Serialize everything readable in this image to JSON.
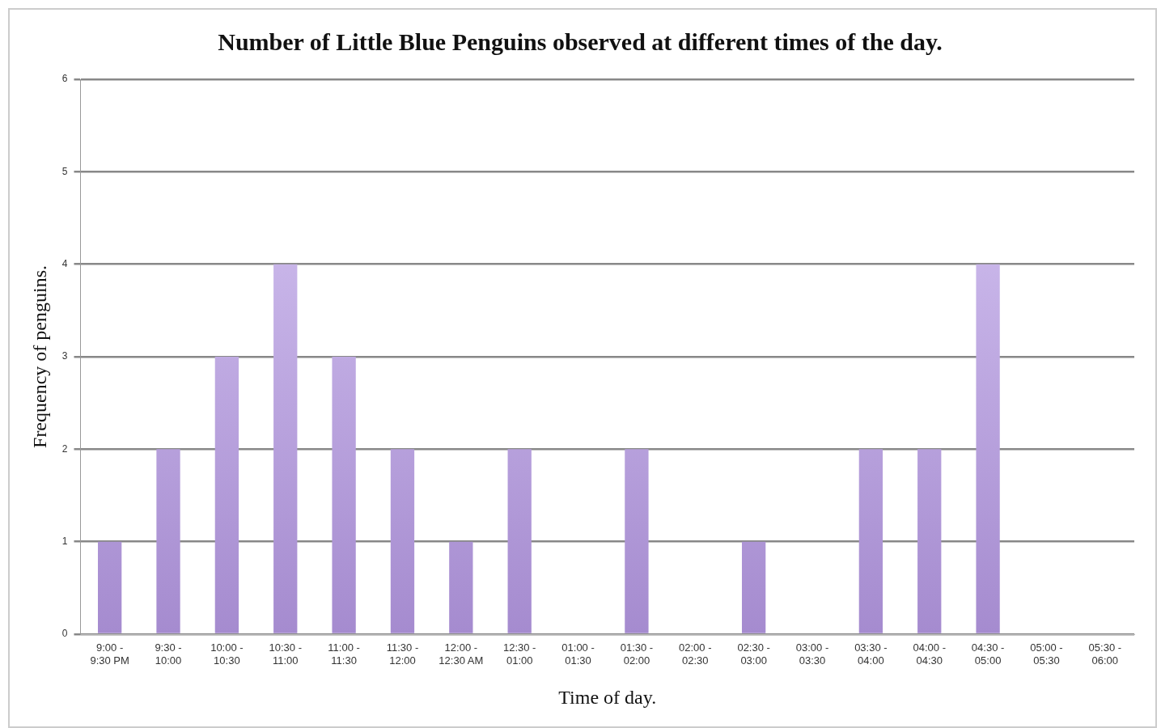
{
  "chart_data": {
    "type": "bar",
    "title": "Number of Little Blue Penguins observed at different times of the day.",
    "xlabel": "Time of day.",
    "ylabel": "Frequency of penguins.",
    "categories": [
      "9:00 - 9:30 PM",
      "9:30 - 10:00",
      "10:00 - 10:30",
      "10:30 - 11:00",
      "11:00 - 11:30",
      "11:30 - 12:00",
      "12:00 - 12:30 AM",
      "12:30 - 01:00",
      "01:00 - 01:30",
      "01:30 - 02:00",
      "02:00 - 02:30",
      "02:30 - 03:00",
      "03:00 - 03:30",
      "03:30 - 04:00",
      "04:00 - 04:30",
      "04:30 - 05:00",
      "05:00 - 05:30",
      "05:30 - 06:00"
    ],
    "values": [
      1,
      2,
      3,
      4,
      3,
      2,
      1,
      2,
      0,
      2,
      0,
      1,
      0,
      2,
      2,
      4,
      0,
      0
    ],
    "color": "#a58bcf",
    "ylim": [
      0,
      6
    ],
    "yticks": [
      0,
      1,
      2,
      3,
      4,
      5,
      6
    ],
    "grid": "y",
    "legend": false
  }
}
